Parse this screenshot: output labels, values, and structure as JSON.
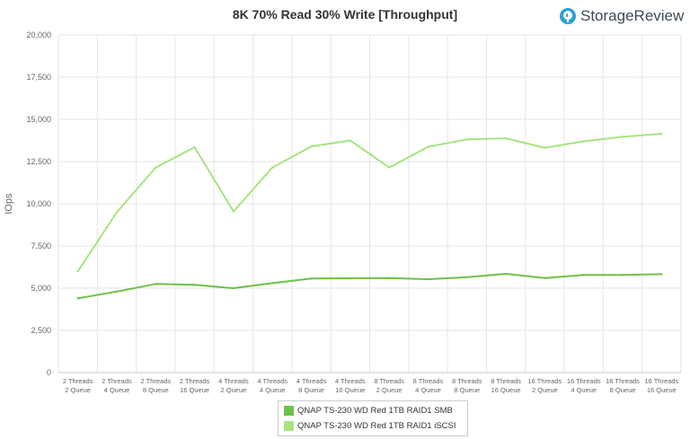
{
  "colors": {
    "smb": "#6cc247",
    "iscsi": "#a6e57f",
    "brand_icon": "#2a9fd8",
    "grid": "#e6e6e6"
  },
  "brand": {
    "name": "StorageReview",
    "icon": "storagereview-logo-icon"
  },
  "chart_data": {
    "type": "line",
    "title": "8K 70% Read 30% Write [Throughput]",
    "xlabel": "",
    "ylabel": "IOps",
    "ylim": [
      0,
      20000
    ],
    "yticks": [
      0,
      2500,
      5000,
      7500,
      10000,
      12500,
      15000,
      17500,
      20000
    ],
    "ytick_labels": [
      "0",
      "2,500",
      "5,000",
      "7,500",
      "10,000",
      "12,500",
      "15,000",
      "17,500",
      "20,000"
    ],
    "grid": true,
    "legend_position": "bottom-center",
    "categories": [
      [
        "2 Threads",
        "2 Queue"
      ],
      [
        "2 Threads",
        "4 Queue"
      ],
      [
        "2 Threads",
        "8 Queue"
      ],
      [
        "2 Threads",
        "16 Queue"
      ],
      [
        "4 Threads",
        "2 Queue"
      ],
      [
        "4 Threads",
        "4 Queue"
      ],
      [
        "4 Threads",
        "8 Queue"
      ],
      [
        "4 Threads",
        "16 Queue"
      ],
      [
        "8 Threads",
        "2 Queue"
      ],
      [
        "8 Threads",
        "4 Queue"
      ],
      [
        "8 Threads",
        "8 Queue"
      ],
      [
        "8 Threads",
        "16 Queue"
      ],
      [
        "16 Threads",
        "2 Queue"
      ],
      [
        "16 Threads",
        "4 Queue"
      ],
      [
        "16 Threads",
        "8 Queue"
      ],
      [
        "16 Threads",
        "16 Queue"
      ]
    ],
    "series": [
      {
        "name": "QNAP TS-230 WD Red 1TB RAID1 SMB",
        "color_key": "smb",
        "values": [
          4400,
          4800,
          5250,
          5200,
          5000,
          5300,
          5570,
          5590,
          5600,
          5530,
          5650,
          5850,
          5600,
          5780,
          5780,
          5830
        ]
      },
      {
        "name": "QNAP TS-230 WD Red 1TB RAID1 iSCSI",
        "color_key": "iscsi",
        "values": [
          6000,
          9500,
          12150,
          13350,
          9550,
          12150,
          13400,
          13750,
          12150,
          13380,
          13820,
          13880,
          13320,
          13700,
          13970,
          14150
        ]
      }
    ]
  }
}
